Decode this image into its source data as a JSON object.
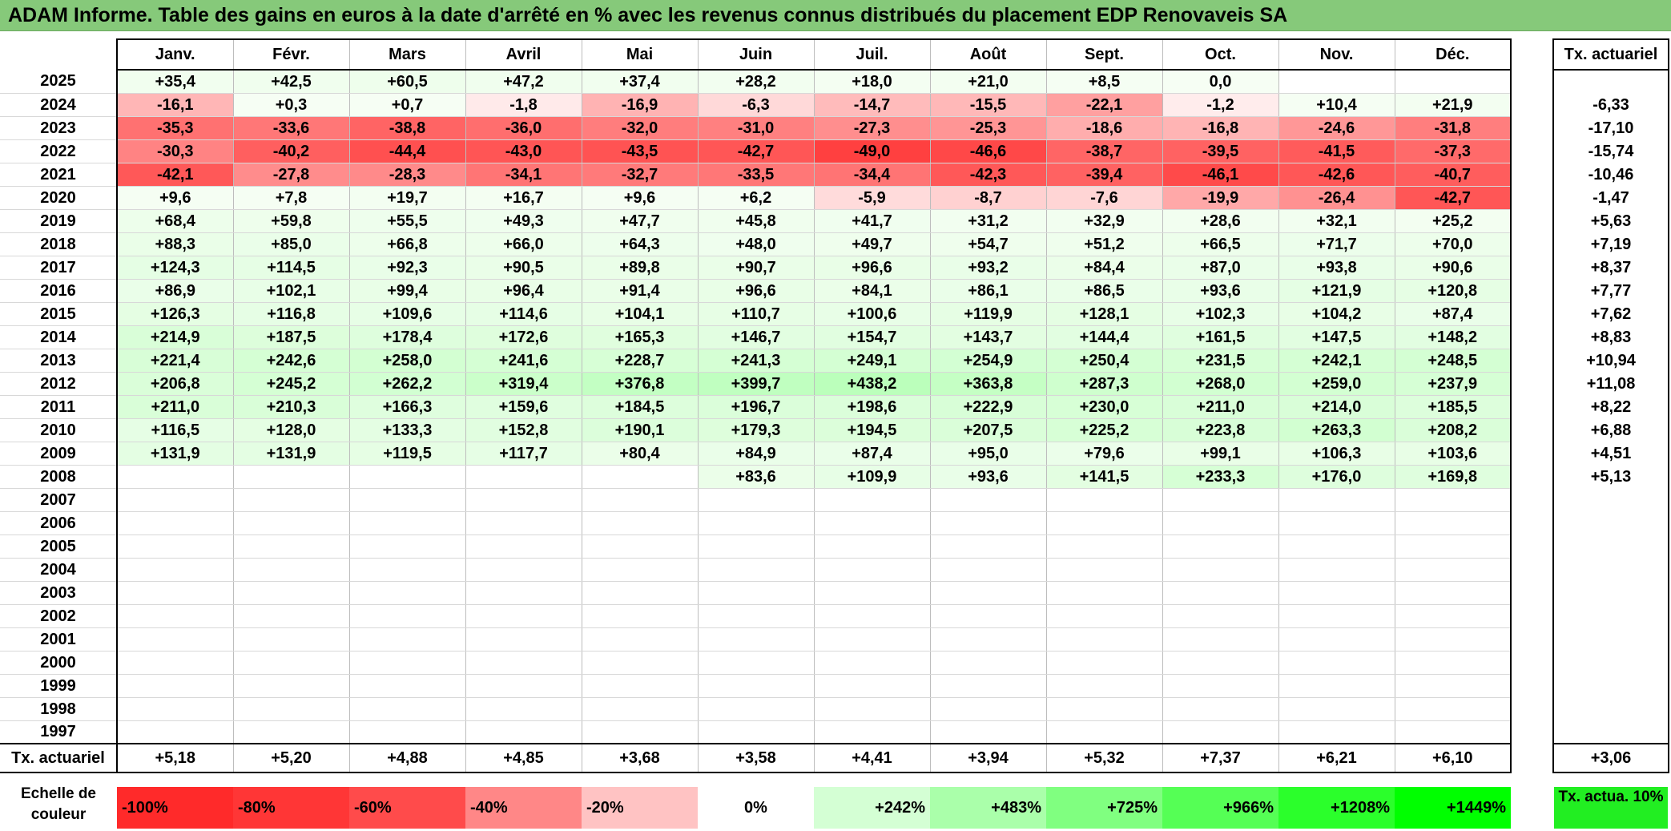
{
  "title": "ADAM Informe. Table des gains en euros à la date d'arrêté en % avec les revenus connus distribués du placement EDP Renovaveis SA",
  "chart_data": {
    "type": "table",
    "months": [
      "Janv.",
      "Févr.",
      "Mars",
      "Avril",
      "Mai",
      "Juin",
      "Juil.",
      "Août",
      "Sept.",
      "Oct.",
      "Nov.",
      "Déc."
    ],
    "actuarial_header": "Tx. actuariel",
    "rows": [
      {
        "year": "2025",
        "values": [
          "+35,4",
          "+42,5",
          "+60,5",
          "+47,2",
          "+37,4",
          "+28,2",
          "+18,0",
          "+21,0",
          "+8,5",
          "0,0",
          "",
          ""
        ],
        "rate": ""
      },
      {
        "year": "2024",
        "values": [
          "-16,1",
          "+0,3",
          "+0,7",
          "-1,8",
          "-16,9",
          "-6,3",
          "-14,7",
          "-15,5",
          "-22,1",
          "-1,2",
          "+10,4",
          "+21,9"
        ],
        "rate": "-6,33"
      },
      {
        "year": "2023",
        "values": [
          "-35,3",
          "-33,6",
          "-38,8",
          "-36,0",
          "-32,0",
          "-31,0",
          "-27,3",
          "-25,3",
          "-18,6",
          "-16,8",
          "-24,6",
          "-31,8"
        ],
        "rate": "-17,10"
      },
      {
        "year": "2022",
        "values": [
          "-30,3",
          "-40,2",
          "-44,4",
          "-43,0",
          "-43,5",
          "-42,7",
          "-49,0",
          "-46,6",
          "-38,7",
          "-39,5",
          "-41,5",
          "-37,3"
        ],
        "rate": "-15,74"
      },
      {
        "year": "2021",
        "values": [
          "-42,1",
          "-27,8",
          "-28,3",
          "-34,1",
          "-32,7",
          "-33,5",
          "-34,4",
          "-42,3",
          "-39,4",
          "-46,1",
          "-42,6",
          "-40,7"
        ],
        "rate": "-10,46"
      },
      {
        "year": "2020",
        "values": [
          "+9,6",
          "+7,8",
          "+19,7",
          "+16,7",
          "+9,6",
          "+6,2",
          "-5,9",
          "-8,7",
          "-7,6",
          "-19,9",
          "-26,4",
          "-42,7"
        ],
        "rate": "-1,47"
      },
      {
        "year": "2019",
        "values": [
          "+68,4",
          "+59,8",
          "+55,5",
          "+49,3",
          "+47,7",
          "+45,8",
          "+41,7",
          "+31,2",
          "+32,9",
          "+28,6",
          "+32,1",
          "+25,2"
        ],
        "rate": "+5,63"
      },
      {
        "year": "2018",
        "values": [
          "+88,3",
          "+85,0",
          "+66,8",
          "+66,0",
          "+64,3",
          "+48,0",
          "+49,7",
          "+54,7",
          "+51,2",
          "+66,5",
          "+71,7",
          "+70,0"
        ],
        "rate": "+7,19"
      },
      {
        "year": "2017",
        "values": [
          "+124,3",
          "+114,5",
          "+92,3",
          "+90,5",
          "+89,8",
          "+90,7",
          "+96,6",
          "+93,2",
          "+84,4",
          "+87,0",
          "+93,8",
          "+90,6"
        ],
        "rate": "+8,37"
      },
      {
        "year": "2016",
        "values": [
          "+86,9",
          "+102,1",
          "+99,4",
          "+96,4",
          "+91,4",
          "+96,6",
          "+84,1",
          "+86,1",
          "+86,5",
          "+93,6",
          "+121,9",
          "+120,8"
        ],
        "rate": "+7,77"
      },
      {
        "year": "2015",
        "values": [
          "+126,3",
          "+116,8",
          "+109,6",
          "+114,6",
          "+104,1",
          "+110,7",
          "+100,6",
          "+119,9",
          "+128,1",
          "+102,3",
          "+104,2",
          "+87,4"
        ],
        "rate": "+7,62"
      },
      {
        "year": "2014",
        "values": [
          "+214,9",
          "+187,5",
          "+178,4",
          "+172,6",
          "+165,3",
          "+146,7",
          "+154,7",
          "+143,7",
          "+144,4",
          "+161,5",
          "+147,5",
          "+148,2"
        ],
        "rate": "+8,83"
      },
      {
        "year": "2013",
        "values": [
          "+221,4",
          "+242,6",
          "+258,0",
          "+241,6",
          "+228,7",
          "+241,3",
          "+249,1",
          "+254,9",
          "+250,4",
          "+231,5",
          "+242,1",
          "+248,5"
        ],
        "rate": "+10,94"
      },
      {
        "year": "2012",
        "values": [
          "+206,8",
          "+245,2",
          "+262,2",
          "+319,4",
          "+376,8",
          "+399,7",
          "+438,2",
          "+363,8",
          "+287,3",
          "+268,0",
          "+259,0",
          "+237,9"
        ],
        "rate": "+11,08"
      },
      {
        "year": "2011",
        "values": [
          "+211,0",
          "+210,3",
          "+166,3",
          "+159,6",
          "+184,5",
          "+196,7",
          "+198,6",
          "+222,9",
          "+230,0",
          "+211,0",
          "+214,0",
          "+185,5"
        ],
        "rate": "+8,22"
      },
      {
        "year": "2010",
        "values": [
          "+116,5",
          "+128,0",
          "+133,3",
          "+152,8",
          "+190,1",
          "+179,3",
          "+194,5",
          "+207,5",
          "+225,2",
          "+223,8",
          "+263,3",
          "+208,2"
        ],
        "rate": "+6,88"
      },
      {
        "year": "2009",
        "values": [
          "+131,9",
          "+131,9",
          "+119,5",
          "+117,7",
          "+80,4",
          "+84,9",
          "+87,4",
          "+95,0",
          "+79,6",
          "+99,1",
          "+106,3",
          "+103,6"
        ],
        "rate": "+4,51"
      },
      {
        "year": "2008",
        "values": [
          "",
          "",
          "",
          "",
          "",
          "+83,6",
          "+109,9",
          "+93,6",
          "+141,5",
          "+233,3",
          "+176,0",
          "+169,8"
        ],
        "rate": "+5,13"
      },
      {
        "year": "2007",
        "values": [
          "",
          "",
          "",
          "",
          "",
          "",
          "",
          "",
          "",
          "",
          "",
          ""
        ],
        "rate": ""
      },
      {
        "year": "2006",
        "values": [
          "",
          "",
          "",
          "",
          "",
          "",
          "",
          "",
          "",
          "",
          "",
          ""
        ],
        "rate": ""
      },
      {
        "year": "2005",
        "values": [
          "",
          "",
          "",
          "",
          "",
          "",
          "",
          "",
          "",
          "",
          "",
          ""
        ],
        "rate": ""
      },
      {
        "year": "2004",
        "values": [
          "",
          "",
          "",
          "",
          "",
          "",
          "",
          "",
          "",
          "",
          "",
          ""
        ],
        "rate": ""
      },
      {
        "year": "2003",
        "values": [
          "",
          "",
          "",
          "",
          "",
          "",
          "",
          "",
          "",
          "",
          "",
          ""
        ],
        "rate": ""
      },
      {
        "year": "2002",
        "values": [
          "",
          "",
          "",
          "",
          "",
          "",
          "",
          "",
          "",
          "",
          "",
          ""
        ],
        "rate": ""
      },
      {
        "year": "2001",
        "values": [
          "",
          "",
          "",
          "",
          "",
          "",
          "",
          "",
          "",
          "",
          "",
          ""
        ],
        "rate": ""
      },
      {
        "year": "2000",
        "values": [
          "",
          "",
          "",
          "",
          "",
          "",
          "",
          "",
          "",
          "",
          "",
          ""
        ],
        "rate": ""
      },
      {
        "year": "1999",
        "values": [
          "",
          "",
          "",
          "",
          "",
          "",
          "",
          "",
          "",
          "",
          "",
          ""
        ],
        "rate": ""
      },
      {
        "year": "1998",
        "values": [
          "",
          "",
          "",
          "",
          "",
          "",
          "",
          "",
          "",
          "",
          "",
          ""
        ],
        "rate": ""
      },
      {
        "year": "1997",
        "values": [
          "",
          "",
          "",
          "",
          "",
          "",
          "",
          "",
          "",
          "",
          "",
          ""
        ],
        "rate": ""
      }
    ],
    "footer": {
      "label": "Tx. actuariel",
      "values": [
        "+5,18",
        "+5,20",
        "+4,88",
        "+4,85",
        "+3,68",
        "+3,58",
        "+4,41",
        "+3,94",
        "+5,32",
        "+7,37",
        "+6,21",
        "+6,10"
      ],
      "rate": "+3,06"
    },
    "scale": {
      "label": "Echelle de couleur",
      "steps": [
        {
          "label": "-100%",
          "color": "#ff2a2a"
        },
        {
          "label": "-80%",
          "color": "#ff3636"
        },
        {
          "label": "-60%",
          "color": "#ff4b4b"
        },
        {
          "label": "-40%",
          "color": "#ff8787"
        },
        {
          "label": "-20%",
          "color": "#ffc3c3"
        },
        {
          "label": "0%",
          "color": "#ffffff"
        },
        {
          "label": "+242%",
          "color": "#d4ffd4"
        },
        {
          "label": "+483%",
          "color": "#aaffaa"
        },
        {
          "label": "+725%",
          "color": "#80ff80"
        },
        {
          "label": "+966%",
          "color": "#55ff55"
        },
        {
          "label": "+1208%",
          "color": "#2bff2b"
        },
        {
          "label": "+1449%",
          "color": "#00ff00"
        }
      ],
      "green_legend": "Tx. actua. 10%",
      "green_color": "#22ee22"
    }
  }
}
